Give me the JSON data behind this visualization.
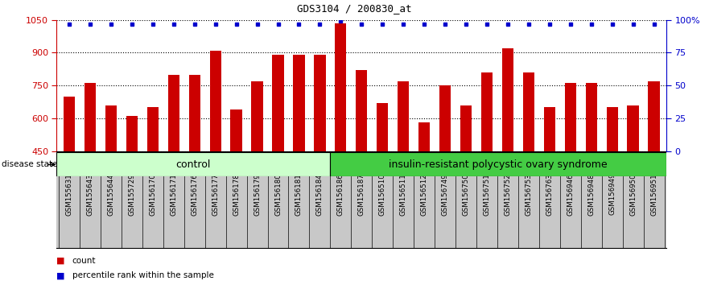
{
  "title": "GDS3104 / 200830_at",
  "samples": [
    "GSM155631",
    "GSM155643",
    "GSM155644",
    "GSM155729",
    "GSM156170",
    "GSM156171",
    "GSM156176",
    "GSM156177",
    "GSM156178",
    "GSM156179",
    "GSM156180",
    "GSM156181",
    "GSM156184",
    "GSM156186",
    "GSM156187",
    "GSM156510",
    "GSM156511",
    "GSM156512",
    "GSM156749",
    "GSM156750",
    "GSM156751",
    "GSM156752",
    "GSM156753",
    "GSM156763",
    "GSM156946",
    "GSM156948",
    "GSM156949",
    "GSM156950",
    "GSM156951"
  ],
  "bar_values": [
    700,
    760,
    660,
    610,
    650,
    800,
    800,
    910,
    640,
    770,
    890,
    890,
    890,
    1035,
    820,
    670,
    770,
    580,
    750,
    660,
    810,
    920,
    810,
    650,
    760,
    760,
    650,
    660,
    770
  ],
  "percentile_values": [
    97,
    97,
    97,
    97,
    97,
    97,
    97,
    97,
    97,
    97,
    97,
    97,
    97,
    99,
    97,
    97,
    97,
    97,
    97,
    97,
    97,
    97,
    97,
    97,
    97,
    97,
    97,
    97,
    97
  ],
  "control_count": 13,
  "bar_color": "#cc0000",
  "dot_color": "#0000cc",
  "ylim_left": [
    450,
    1050
  ],
  "ylim_right": [
    0,
    100
  ],
  "yticks_left": [
    450,
    600,
    750,
    900,
    1050
  ],
  "yticks_right": [
    0,
    25,
    50,
    75,
    100
  ],
  "ytick_right_labels": [
    "0",
    "25",
    "50",
    "75",
    "100%"
  ],
  "control_label": "control",
  "disease_label": "insulin-resistant polycystic ovary syndrome",
  "legend_count_label": "count",
  "legend_pct_label": "percentile rank within the sample",
  "bg_color": "#ffffff",
  "plot_bg": "#ffffff",
  "xticklabel_bg": "#c8c8c8",
  "control_bg": "#ccffcc",
  "disease_bg": "#44cc44",
  "disease_state_label": "disease state"
}
